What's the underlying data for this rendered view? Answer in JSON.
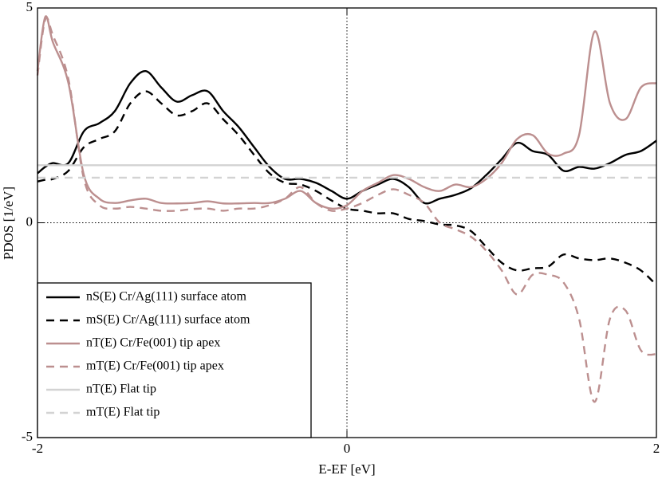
{
  "chart_data": {
    "type": "line",
    "xlabel": "E-EF [eV]",
    "ylabel": "PDOS [1/eV]",
    "x": [
      -2,
      -1.95,
      -1.9,
      -1.8,
      -1.7,
      -1.6,
      -1.5,
      -1.4,
      -1.3,
      -1.2,
      -1.1,
      -1.0,
      -0.9,
      -0.8,
      -0.7,
      -0.6,
      -0.5,
      -0.4,
      -0.3,
      -0.2,
      -0.1,
      0,
      0.1,
      0.2,
      0.3,
      0.4,
      0.5,
      0.6,
      0.7,
      0.8,
      0.9,
      1.0,
      1.1,
      1.2,
      1.3,
      1.4,
      1.5,
      1.6,
      1.7,
      1.8,
      1.9,
      2.0
    ],
    "series": [
      {
        "name": "nS(E) Cr/Ag(111) surface atom",
        "color": "#000000",
        "dashed": false,
        "values": [
          1.15,
          1.3,
          1.39,
          1.39,
          2.13,
          2.32,
          2.6,
          3.25,
          3.53,
          3.15,
          2.82,
          2.97,
          3.06,
          2.6,
          2.23,
          1.76,
          1.3,
          1.02,
          1.02,
          0.93,
          0.74,
          0.56,
          0.74,
          0.89,
          1.02,
          0.83,
          0.46,
          0.56,
          0.65,
          0.8,
          1.11,
          1.48,
          1.86,
          1.67,
          1.58,
          1.21,
          1.3,
          1.26,
          1.39,
          1.58,
          1.67,
          1.91
        ]
      },
      {
        "name": "mS(E) Cr/Ag(111) surface atom",
        "color": "#000000",
        "dashed": true,
        "values": [
          0.96,
          1.0,
          1.02,
          1.21,
          1.76,
          1.95,
          2.13,
          2.78,
          3.06,
          2.78,
          2.5,
          2.6,
          2.78,
          2.41,
          2.04,
          1.58,
          1.15,
          0.93,
          0.89,
          0.74,
          0.52,
          0.33,
          0.28,
          0.22,
          0.22,
          0.09,
          0.04,
          -0.04,
          -0.06,
          -0.19,
          -0.56,
          -0.93,
          -1.11,
          -1.06,
          -1.02,
          -0.74,
          -0.83,
          -0.87,
          -0.83,
          -0.93,
          -1.11,
          -1.45
        ]
      },
      {
        "name": "nT(E) Cr/Fe(001) tip apex",
        "color": "#bc8f8f",
        "dashed": false,
        "values": [
          3.53,
          4.79,
          4.2,
          3.25,
          1.11,
          0.56,
          0.46,
          0.52,
          0.56,
          0.46,
          0.45,
          0.46,
          0.5,
          0.45,
          0.45,
          0.46,
          0.46,
          0.56,
          0.74,
          0.46,
          0.33,
          0.41,
          0.74,
          0.93,
          1.11,
          1.02,
          0.83,
          0.74,
          0.89,
          0.83,
          1.02,
          1.39,
          1.95,
          2.04,
          1.61,
          1.61,
          2.04,
          4.45,
          2.78,
          2.41,
          3.15,
          3.25
        ]
      },
      {
        "name": "mT(E) Cr/Fe(001) tip apex",
        "color": "#bc8f8f",
        "dashed": true,
        "values": [
          3.43,
          4.73,
          4.36,
          3.34,
          1.02,
          0.41,
          0.33,
          0.37,
          0.33,
          0.28,
          0.28,
          0.32,
          0.33,
          0.28,
          0.33,
          0.33,
          0.41,
          0.56,
          0.83,
          0.46,
          0.28,
          0.33,
          0.46,
          0.65,
          0.78,
          0.65,
          0.46,
          0,
          -0.15,
          -0.32,
          -0.65,
          -1.11,
          -1.67,
          -1.21,
          -1.21,
          -1.39,
          -2.23,
          -4.17,
          -2.23,
          -2.04,
          -2.97,
          -3.06
        ]
      },
      {
        "name": "nT(E) Flat tip",
        "color": "#d3d3d3",
        "dashed": false,
        "values": [
          1.34,
          1.34,
          1.34,
          1.34,
          1.34,
          1.34,
          1.34,
          1.34,
          1.34,
          1.34,
          1.34,
          1.34,
          1.34,
          1.34,
          1.34,
          1.34,
          1.34,
          1.34,
          1.34,
          1.34,
          1.34,
          1.34,
          1.34,
          1.34,
          1.34,
          1.34,
          1.34,
          1.34,
          1.34,
          1.34,
          1.34,
          1.34,
          1.34,
          1.34,
          1.34,
          1.34,
          1.34,
          1.34,
          1.34,
          1.34,
          1.34,
          1.34
        ]
      },
      {
        "name": "mT(E) Flat tip",
        "color": "#d3d3d3",
        "dashed": true,
        "values": [
          1.05,
          1.05,
          1.05,
          1.05,
          1.05,
          1.05,
          1.05,
          1.05,
          1.05,
          1.05,
          1.05,
          1.05,
          1.05,
          1.05,
          1.05,
          1.05,
          1.05,
          1.05,
          1.05,
          1.05,
          1.05,
          1.05,
          1.05,
          1.05,
          1.05,
          1.05,
          1.05,
          1.05,
          1.05,
          1.05,
          1.05,
          1.05,
          1.05,
          1.05,
          1.05,
          1.05,
          1.05,
          1.05,
          1.05,
          1.05,
          1.05,
          1.05
        ]
      }
    ],
    "xlim": [
      -2,
      2
    ],
    "ylim": [
      -5,
      5
    ],
    "xticks": [
      -2,
      0,
      2
    ],
    "yticks": [
      -5,
      0,
      5
    ],
    "legend": "lower left",
    "grid": false
  }
}
